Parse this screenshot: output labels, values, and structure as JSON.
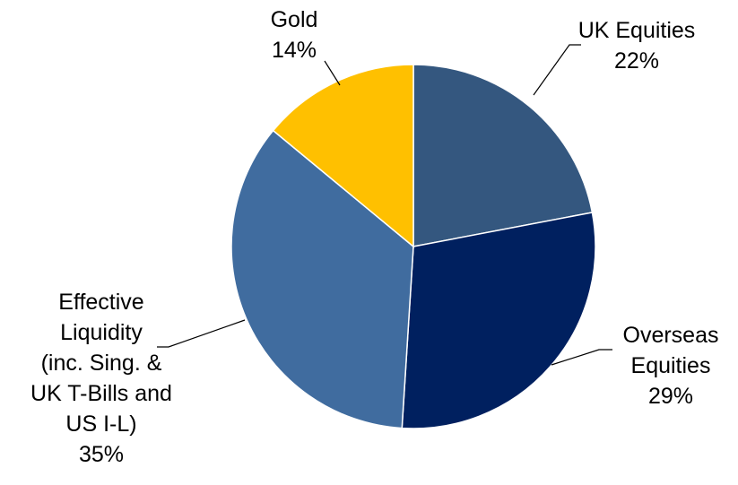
{
  "chart_data": {
    "type": "pie",
    "title": "",
    "slices": [
      {
        "label_lines": [
          "UK Equities"
        ],
        "value": 22,
        "value_label": "22%",
        "color": "#34577f"
      },
      {
        "label_lines": [
          "Overseas",
          "Equities"
        ],
        "value": 29,
        "value_label": "29%",
        "color": "#00205f"
      },
      {
        "label_lines": [
          "Effective",
          "Liquidity",
          "(inc. Sing. &",
          "UK T-Bills and",
          "US I-L)"
        ],
        "value": 35,
        "value_label": "35%",
        "color": "#406c9f"
      },
      {
        "label_lines": [
          "Gold"
        ],
        "value": 14,
        "value_label": "14%",
        "color": "#ffc000"
      }
    ],
    "legend": "none"
  }
}
